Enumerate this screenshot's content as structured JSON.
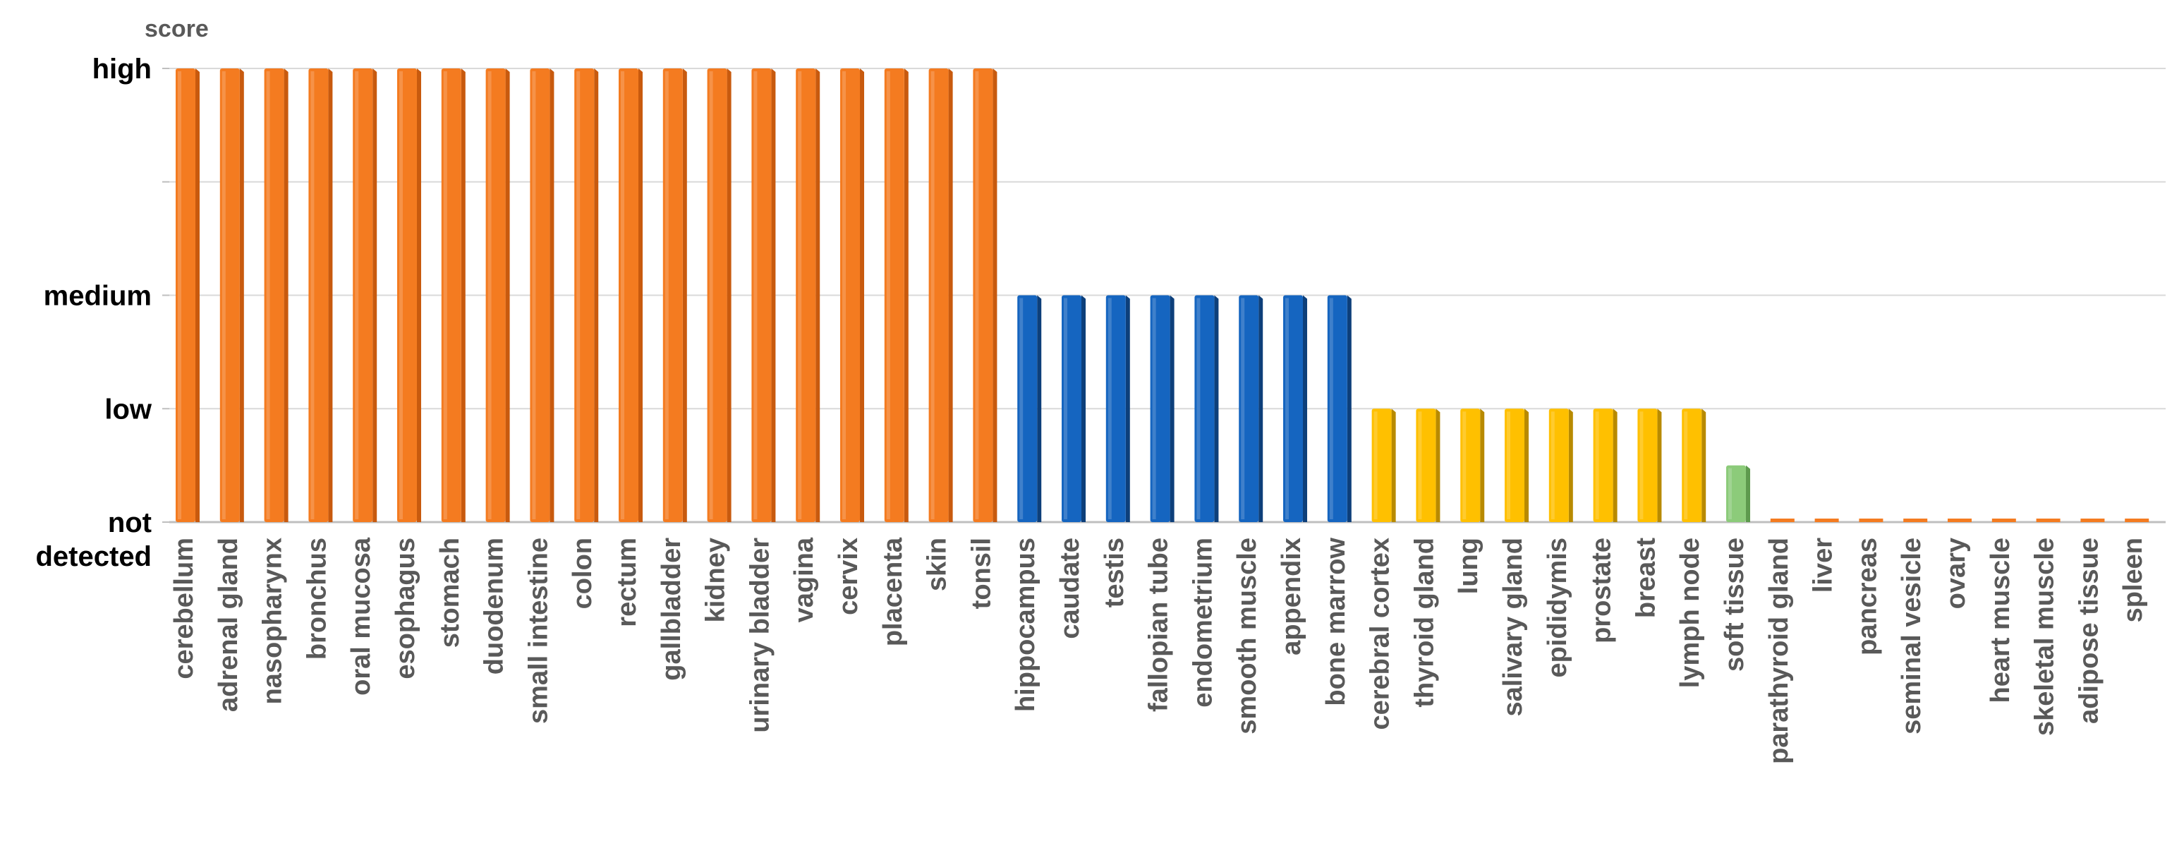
{
  "chart_data": {
    "type": "bar",
    "title": "",
    "xlabel": "",
    "ylabel": "score",
    "y_levels": [
      {
        "value": 0,
        "label": "not detected"
      },
      {
        "value": 1,
        "label": "low"
      },
      {
        "value": 2,
        "label": "medium"
      },
      {
        "value": 4,
        "label": "high"
      }
    ],
    "ylim": [
      0,
      4
    ],
    "grid": true,
    "legend": "none",
    "categories": [
      "cerebellum",
      "adrenal gland",
      "nasopharynx",
      "bronchus",
      "oral mucosa",
      "esophagus",
      "stomach",
      "duodenum",
      "small intestine",
      "colon",
      "rectum",
      "gallbladder",
      "kidney",
      "urinary bladder",
      "vagina",
      "cervix",
      "placenta",
      "skin",
      "tonsil",
      "hippocampus",
      "caudate",
      "testis",
      "fallopian tube",
      "endometrium",
      "smooth muscle",
      "appendix",
      "bone marrow",
      "cerebral cortex",
      "thyroid gland",
      "lung",
      "salivary gland",
      "epididymis",
      "prostate",
      "breast",
      "lymph node",
      "soft tissue",
      "parathyroid gland",
      "liver",
      "pancreas",
      "seminal vesicle",
      "ovary",
      "heart muscle",
      "skeletal muscle",
      "adipose tissue",
      "spleen"
    ],
    "values": [
      4,
      4,
      4,
      4,
      4,
      4,
      4,
      4,
      4,
      4,
      4,
      4,
      4,
      4,
      4,
      4,
      4,
      4,
      4,
      2,
      2,
      2,
      2,
      2,
      2,
      2,
      2,
      1,
      1,
      1,
      1,
      1,
      1,
      1,
      1,
      0.5,
      0,
      0,
      0,
      0,
      0,
      0,
      0,
      0,
      0
    ],
    "bar_colors": [
      "#F47B20",
      "#F47B20",
      "#F47B20",
      "#F47B20",
      "#F47B20",
      "#F47B20",
      "#F47B20",
      "#F47B20",
      "#F47B20",
      "#F47B20",
      "#F47B20",
      "#F47B20",
      "#F47B20",
      "#F47B20",
      "#F47B20",
      "#F47B20",
      "#F47B20",
      "#F47B20",
      "#F47B20",
      "#1565C0",
      "#1565C0",
      "#1565C0",
      "#1565C0",
      "#1565C0",
      "#1565C0",
      "#1565C0",
      "#1565C0",
      "#FFC000",
      "#FFC000",
      "#FFC000",
      "#FFC000",
      "#FFC000",
      "#FFC000",
      "#FFC000",
      "#FFC000",
      "#8CCB7A",
      "#F47B20",
      "#F47B20",
      "#F47B20",
      "#F47B20",
      "#F47B20",
      "#F47B20",
      "#F47B20",
      "#F47B20",
      "#F47B20"
    ],
    "bar_side_colors": [
      "#C85A0E",
      "#C85A0E",
      "#C85A0E",
      "#C85A0E",
      "#C85A0E",
      "#C85A0E",
      "#C85A0E",
      "#C85A0E",
      "#C85A0E",
      "#C85A0E",
      "#C85A0E",
      "#C85A0E",
      "#C85A0E",
      "#C85A0E",
      "#C85A0E",
      "#C85A0E",
      "#C85A0E",
      "#C85A0E",
      "#C85A0E",
      "#0D3F7A",
      "#0D3F7A",
      "#0D3F7A",
      "#0D3F7A",
      "#0D3F7A",
      "#0D3F7A",
      "#0D3F7A",
      "#0D3F7A",
      "#B88A00",
      "#B88A00",
      "#B88A00",
      "#B88A00",
      "#B88A00",
      "#B88A00",
      "#B88A00",
      "#B88A00",
      "#5E9A4E",
      "#C85A0E",
      "#C85A0E",
      "#C85A0E",
      "#C85A0E",
      "#C85A0E",
      "#C85A0E",
      "#C85A0E",
      "#C85A0E",
      "#C85A0E"
    ]
  }
}
